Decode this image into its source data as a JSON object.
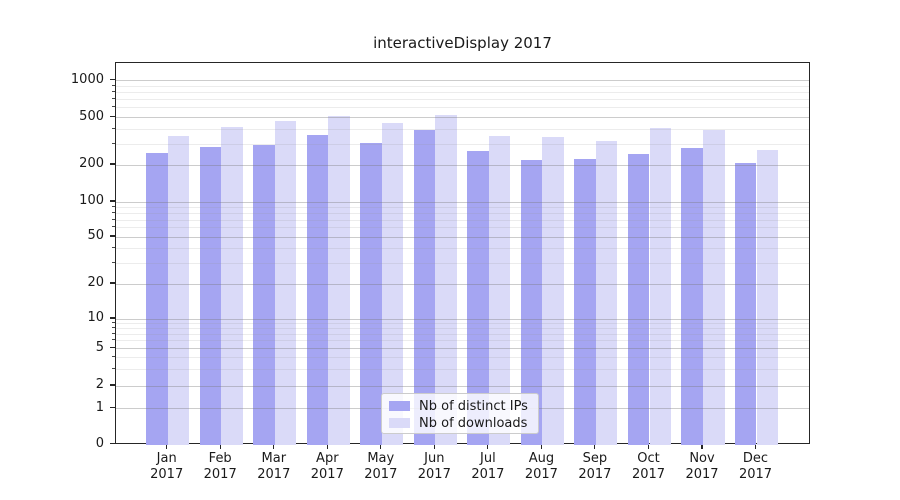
{
  "chart_data": {
    "type": "bar",
    "title": "interactiveDisplay 2017",
    "categories": [
      "Jan 2017",
      "Feb 2017",
      "Mar 2017",
      "Apr 2017",
      "May 2017",
      "Jun 2017",
      "Jul 2017",
      "Aug 2017",
      "Sep 2017",
      "Oct 2017",
      "Nov 2017",
      "Dec 2017"
    ],
    "x_tick_line1": [
      "Jan",
      "Feb",
      "Mar",
      "Apr",
      "May",
      "Jun",
      "Jul",
      "Aug",
      "Sep",
      "Oct",
      "Nov",
      "Dec"
    ],
    "x_tick_line2": "2017",
    "series": [
      {
        "name": "Nb of distinct IPs",
        "color": "#a5a5f2",
        "values": [
          252,
          282,
          293,
          355,
          304,
          390,
          261,
          220,
          224,
          247,
          277,
          209
        ]
      },
      {
        "name": "Nb of downloads",
        "color": "#dadaf8",
        "values": [
          350,
          413,
          465,
          510,
          452,
          528,
          349,
          346,
          316,
          405,
          390,
          267
        ]
      }
    ],
    "yscale": "symlog",
    "yticks": [
      0,
      1,
      2,
      5,
      10,
      20,
      50,
      100,
      200,
      500,
      1000
    ],
    "minor_yticks": [
      3,
      4,
      6,
      7,
      8,
      9,
      30,
      40,
      60,
      70,
      80,
      90,
      300,
      400,
      600,
      700,
      800,
      900
    ],
    "ylim": [
      0,
      1390
    ],
    "grid": true,
    "legend_position": "lower center"
  },
  "colors": {
    "background": "#ffffff",
    "spine": "#262626",
    "grid_major": "#c8c8c8",
    "grid_minor": "#e8e8e8",
    "text": "#1a1a1a"
  }
}
